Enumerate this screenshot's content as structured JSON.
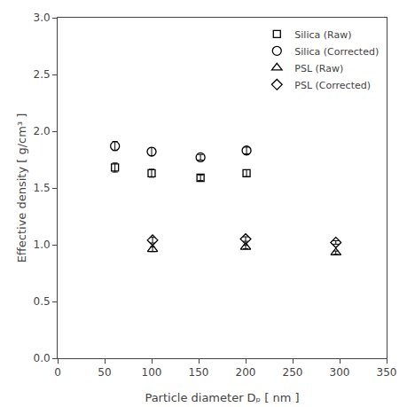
{
  "chart_data": {
    "type": "scatter",
    "xlabel": "Particle diameter Dₚ [ nm ]",
    "ylabel": "Effective density [ g/cm³ ]",
    "color": "black",
    "grid": false,
    "legend": "upper right",
    "xlim": [
      0,
      350
    ],
    "ylim": [
      0,
      3.0
    ],
    "xticks": [
      0,
      50,
      100,
      150,
      200,
      250,
      300,
      350
    ],
    "yticks": [
      {
        "value": 0,
        "label": "0.0"
      },
      0.5,
      {
        "value": 1.0,
        "label": "1.0"
      },
      1.5,
      {
        "value": 2.0,
        "label": "2.0"
      },
      2.5,
      {
        "value": 3.0,
        "label": "3.0"
      }
    ],
    "series": [
      {
        "name": "Silica (Raw)",
        "marker": "square",
        "x": [
          61,
          100,
          152,
          201
        ],
        "values": [
          1.68,
          1.63,
          1.59,
          1.63
        ],
        "yerr": [
          0.04,
          0.035,
          0.025,
          0.03
        ]
      },
      {
        "name": "Silica (Corrected)",
        "marker": "circle",
        "x": [
          61,
          100,
          152,
          201
        ],
        "values": [
          1.87,
          1.82,
          1.77,
          1.83
        ],
        "yerr": [
          0.04,
          0.035,
          0.025,
          0.03
        ]
      },
      {
        "name": "PSL (Raw)",
        "marker": "triangle-up",
        "x": [
          101,
          200,
          296
        ],
        "values": [
          0.96,
          0.98,
          0.93
        ],
        "yerr": [
          0.02,
          0.015,
          0.015
        ]
      },
      {
        "name": "PSL (Corrected)",
        "marker": "diamond",
        "x": [
          101,
          200,
          296
        ],
        "values": [
          1.04,
          1.05,
          1.02
        ],
        "yerr": [
          0.025,
          0.02,
          0.015
        ]
      }
    ]
  }
}
